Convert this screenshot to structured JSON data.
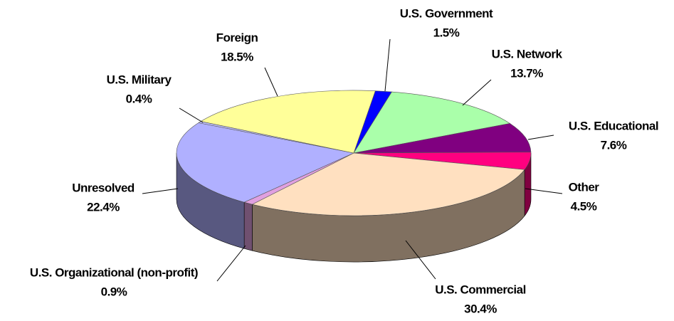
{
  "chart_data": {
    "type": "pie",
    "categories": [
      "U.S. Government",
      "U.S. Network",
      "U.S. Educational",
      "Other",
      "U.S. Commercial",
      "U.S. Organizational (non-profit)",
      "Unresolved",
      "U.S. Military",
      "Foreign"
    ],
    "values": [
      1.5,
      13.7,
      7.6,
      4.5,
      30.4,
      0.9,
      22.4,
      0.4,
      18.5
    ],
    "value_labels": [
      "1.5%",
      "13.7%",
      "7.6%",
      "4.5%",
      "30.4%",
      "0.9%",
      "22.4%",
      "0.4%",
      "18.5%"
    ],
    "colors": [
      "#0000ff",
      "#aaffaa",
      "#800080",
      "#ff0080",
      "#ffe0c0",
      "#e0a0e0",
      "#b0b0ff",
      "#c0c0ff",
      "#ffff99"
    ]
  }
}
